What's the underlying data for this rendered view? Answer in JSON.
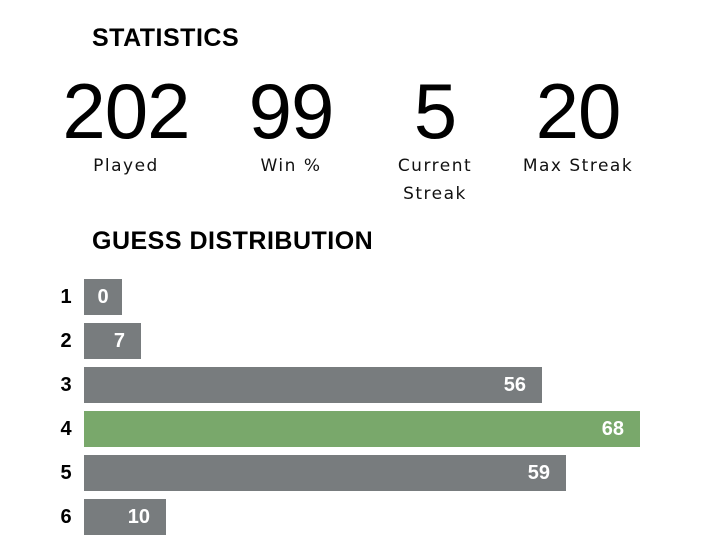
{
  "statistics": {
    "title": "STATISTICS",
    "items": [
      {
        "value": "202",
        "label": "Played"
      },
      {
        "value": "99",
        "label": "Win %"
      },
      {
        "value": "5",
        "label": "Current Streak"
      },
      {
        "value": "20",
        "label": "Max Streak"
      }
    ]
  },
  "distribution": {
    "title": "GUESS DISTRIBUTION",
    "max_value": 68,
    "highlight_guess": 4,
    "bar_color": "#787c7e",
    "highlight_color": "#79a86b",
    "rows": [
      {
        "guess": "1",
        "count": 0
      },
      {
        "guess": "2",
        "count": 7
      },
      {
        "guess": "3",
        "count": 56
      },
      {
        "guess": "4",
        "count": 68
      },
      {
        "guess": "5",
        "count": 59
      },
      {
        "guess": "6",
        "count": 10
      }
    ]
  }
}
